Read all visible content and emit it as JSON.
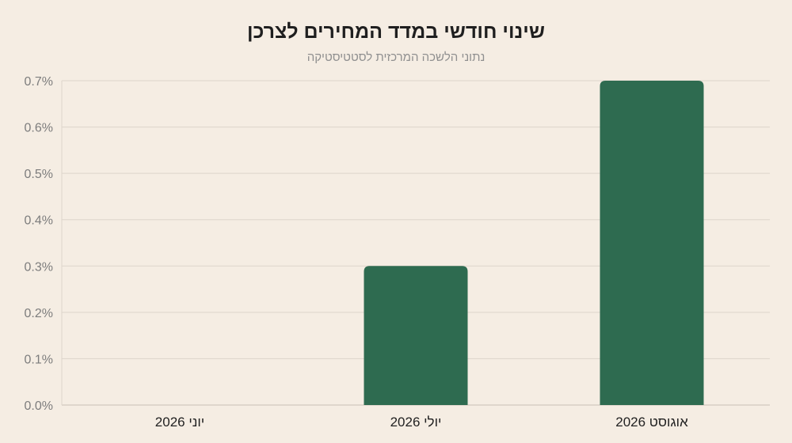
{
  "chart_data": {
    "type": "bar",
    "title": "שינוי חודשי במדד המחירים לצרכן",
    "subtitle": "נתוני הלשכה המרכזית לסטטיסטיקה",
    "categories": [
      "יוני 2026",
      "יולי 2026",
      "אוגוסט 2026"
    ],
    "values": [
      0.0,
      0.3,
      0.7
    ],
    "ylim": [
      0,
      0.7
    ],
    "y_ticks": [
      "0.0%",
      "0.1%",
      "0.2%",
      "0.3%",
      "0.4%",
      "0.5%",
      "0.6%",
      "0.7%"
    ],
    "xlabel": "",
    "ylabel": "",
    "grid": true,
    "bar_color": "#2e6b50",
    "grid_color": "#ddd5cb",
    "axis_color": "#c9c0b5"
  }
}
